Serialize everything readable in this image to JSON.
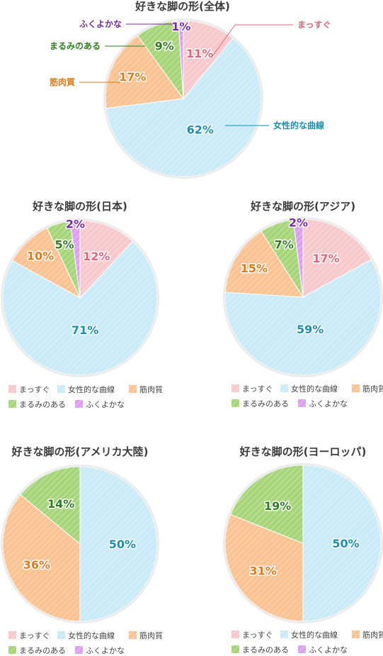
{
  "palette": {
    "まっすぐ": {
      "fill": "#f7c9cc",
      "text": "#e0657a"
    },
    "女性的な曲線": {
      "fill": "#c9ebf7",
      "text": "#1d8fae"
    },
    "筋肉質": {
      "fill": "#fbc392",
      "text": "#e07a1b"
    },
    "まるみのある": {
      "fill": "#a7d67a",
      "text": "#2f7d1e"
    },
    "ふくよかな": {
      "fill": "#de9ff0",
      "text": "#7a2aa0"
    }
  },
  "legend_labels": [
    "まっすぐ",
    "女性的な曲線",
    "筋肉質",
    "まるみのある",
    "ふくよかな"
  ],
  "chart_data": [
    {
      "type": "pie",
      "title": "好きな脚の形(全体)",
      "categories": [
        "まっすぐ",
        "女性的な曲線",
        "筋肉質",
        "まるみのある",
        "ふくよかな"
      ],
      "values": [
        11,
        62,
        17,
        9,
        1
      ],
      "labels": [
        "11%",
        "62%",
        "17%",
        "9%",
        "1%"
      ],
      "legend": "callouts"
    },
    {
      "type": "pie",
      "title": "好きな脚の形(日本)",
      "categories": [
        "まっすぐ",
        "女性的な曲線",
        "筋肉質",
        "まるみのある",
        "ふくよかな"
      ],
      "values": [
        12,
        71,
        10,
        5,
        2
      ],
      "labels": [
        "12%",
        "71%",
        "10%",
        "5%",
        "2%"
      ],
      "legend": "bottom"
    },
    {
      "type": "pie",
      "title": "好きな脚の形(アジア)",
      "categories": [
        "まっすぐ",
        "女性的な曲線",
        "筋肉質",
        "まるみのある",
        "ふくよかな"
      ],
      "values": [
        17,
        59,
        15,
        7,
        2
      ],
      "labels": [
        "17%",
        "59%",
        "15%",
        "7%",
        "2%"
      ],
      "legend": "bottom"
    },
    {
      "type": "pie",
      "title": "好きな脚の形(アメリカ大陸)",
      "categories": [
        "女性的な曲線",
        "筋肉質",
        "まるみのある"
      ],
      "values": [
        50,
        36,
        14
      ],
      "labels": [
        "50%",
        "36%",
        "14%"
      ],
      "legend": "bottom"
    },
    {
      "type": "pie",
      "title": "好きな脚の形(ヨーロッパ)",
      "categories": [
        "女性的な曲線",
        "筋肉質",
        "まるみのある"
      ],
      "values": [
        50,
        31,
        19
      ],
      "labels": [
        "50%",
        "31%",
        "19%"
      ],
      "legend": "bottom"
    }
  ]
}
